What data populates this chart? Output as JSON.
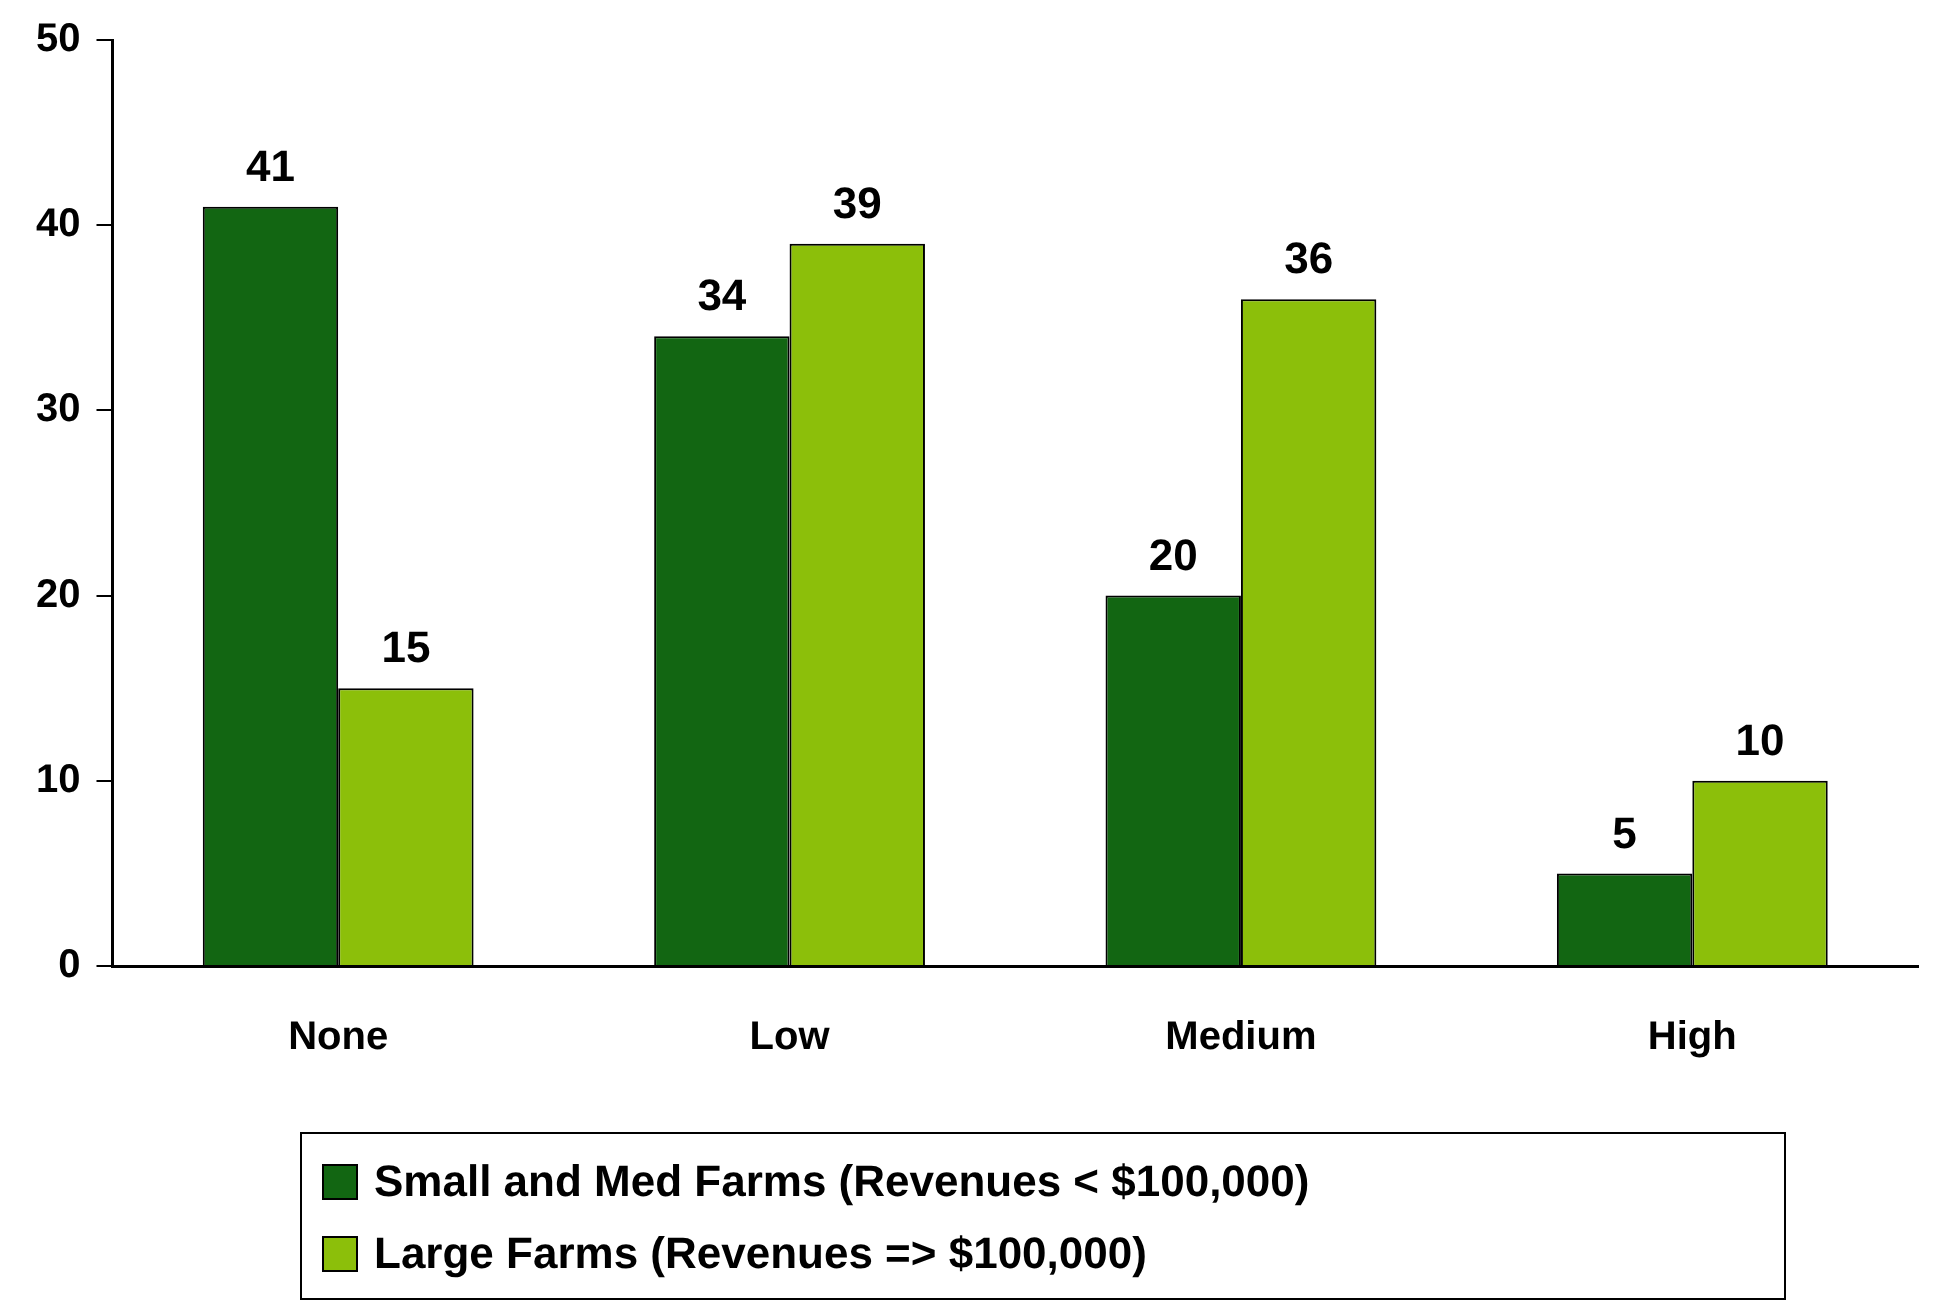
{
  "chart_data": {
    "type": "bar",
    "categories": [
      "None",
      "Low",
      "Medium",
      "High"
    ],
    "series": [
      {
        "name": "Small and Med Farms (Revenues < $100,000)",
        "color": "#126612",
        "values": [
          41,
          34,
          20,
          5
        ]
      },
      {
        "name": "Large Farms (Revenues => $100,000)",
        "color": "#8cbf0a",
        "values": [
          15,
          39,
          36,
          10
        ]
      }
    ],
    "ylim": [
      0,
      50
    ],
    "yticks": [
      0,
      10,
      20,
      30,
      40,
      50
    ],
    "grid": false,
    "legend": "bottom",
    "data_labels": true
  }
}
